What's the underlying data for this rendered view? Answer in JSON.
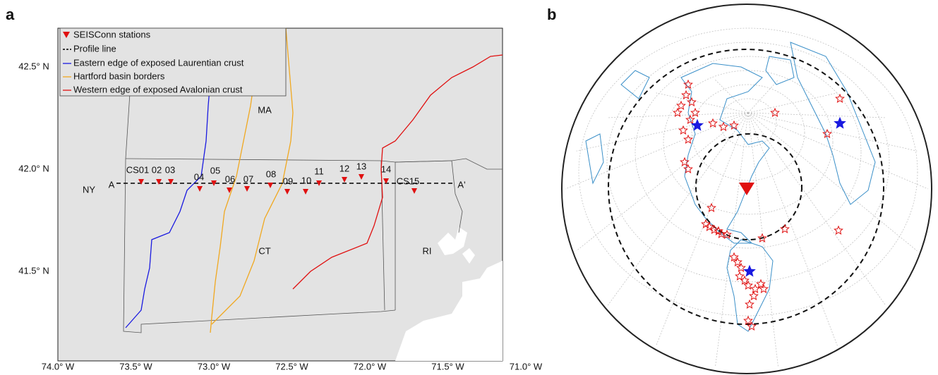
{
  "panel_a": {
    "label": "a",
    "legend": [
      "SEISConn stations",
      "Profile line",
      "Eastern edge of exposed Laurentian crust",
      "Hartford basin borders",
      "Western edge of exposed Avalonian crust"
    ],
    "states": [
      "MA",
      "NY",
      "CT",
      "RI"
    ],
    "profile_ends": [
      "A",
      "A'"
    ],
    "stations": [
      "CS01",
      "02",
      "03",
      "04",
      "05",
      "06",
      "07",
      "08",
      "09",
      "10",
      "11",
      "12",
      "13",
      "14",
      "CS15"
    ],
    "lat_labels": [
      "42.5° N",
      "42.0° N",
      "41.5° N"
    ],
    "lon_labels": [
      "74.0° W",
      "73.5° W",
      "73.0° W",
      "72.5° W",
      "72.0° W",
      "71.5° W",
      "71.0° W"
    ]
  },
  "panel_b": {
    "label": "b"
  }
}
